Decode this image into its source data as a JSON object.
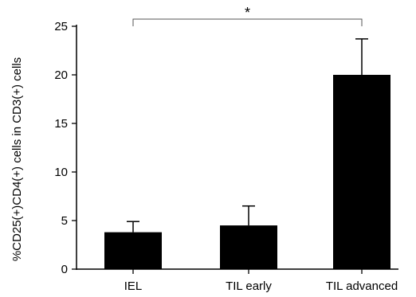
{
  "chart_data": {
    "type": "bar",
    "title": "",
    "xlabel": "",
    "ylabel": "%CD25(+)CD4(+) cells in CD3(+) cells",
    "categories": [
      "IEL",
      "TIL early",
      "TIL advanced"
    ],
    "values": [
      3.8,
      4.5,
      20.0
    ],
    "error_upper": [
      4.9,
      6.5,
      23.7
    ],
    "ylim": [
      0,
      25
    ],
    "yticks": [
      "0",
      "5",
      "10",
      "15",
      "20",
      "25"
    ],
    "bar_color": "#000000",
    "grid": false,
    "significance": {
      "from_category": "IEL",
      "to_category": "TIL advanced",
      "marker": "*"
    }
  }
}
